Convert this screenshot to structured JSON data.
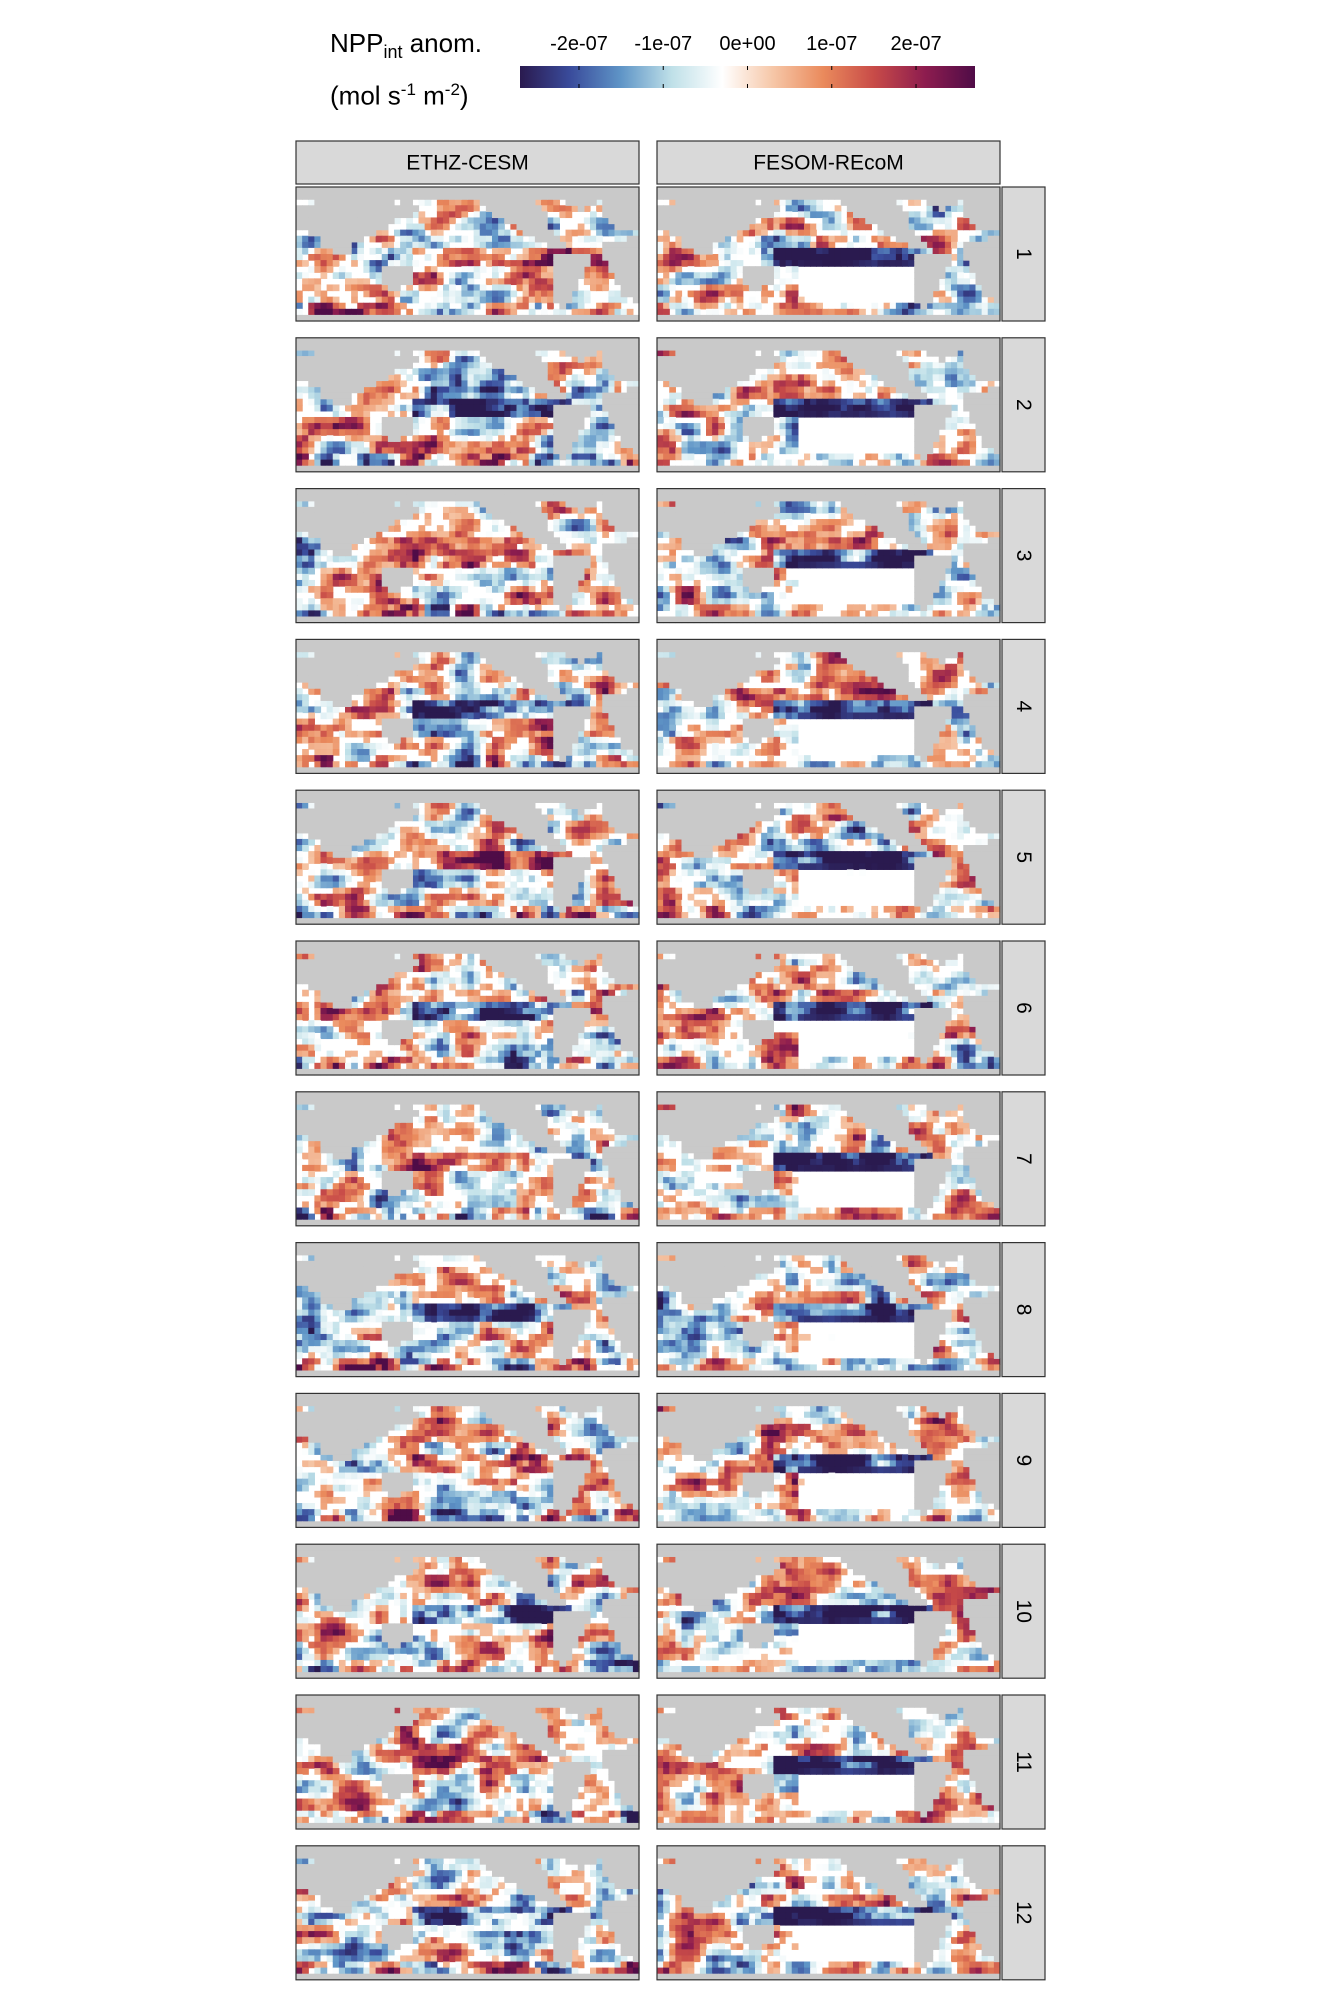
{
  "legend": {
    "title_main": "NPP",
    "title_sub": "int",
    "title_rest": " anom.",
    "unit_open": "(mol s",
    "unit_exp1": "-1",
    "unit_mid": " m",
    "unit_exp2": "-2",
    "unit_close": ")",
    "ticks": [
      {
        "label": "-2e-07",
        "value": -2e-07
      },
      {
        "label": "-1e-07",
        "value": -1e-07
      },
      {
        "label": "0e+00",
        "value": 0
      },
      {
        "label": "1e-07",
        "value": 1e-07
      },
      {
        "label": "2e-07",
        "value": 2e-07
      }
    ],
    "range": [
      -2.7e-07,
      2.7e-07
    ],
    "palette": [
      "#2a1a4f",
      "#3a4c9c",
      "#5f95c7",
      "#bfe0e8",
      "#ffffff",
      "#f6c7a8",
      "#ea8a5c",
      "#c84b48",
      "#8e1d4f",
      "#4f0c47"
    ]
  },
  "chart_data": {
    "type": "heatmap",
    "description_type": "faceted map grid",
    "columns": [
      "ETHZ-CESM",
      "FESOM-REcoM"
    ],
    "rows": [
      "1",
      "2",
      "3",
      "4",
      "5",
      "6",
      "7",
      "8",
      "9",
      "10",
      "11",
      "12"
    ],
    "value_range": [
      -2.7e-07,
      2.7e-07
    ],
    "colors": {
      "land": "#c9c9c9",
      "ocean_zero": "#ffffff",
      "strip_bg": "#d9d9d9",
      "panel_border": "#333333"
    }
  }
}
